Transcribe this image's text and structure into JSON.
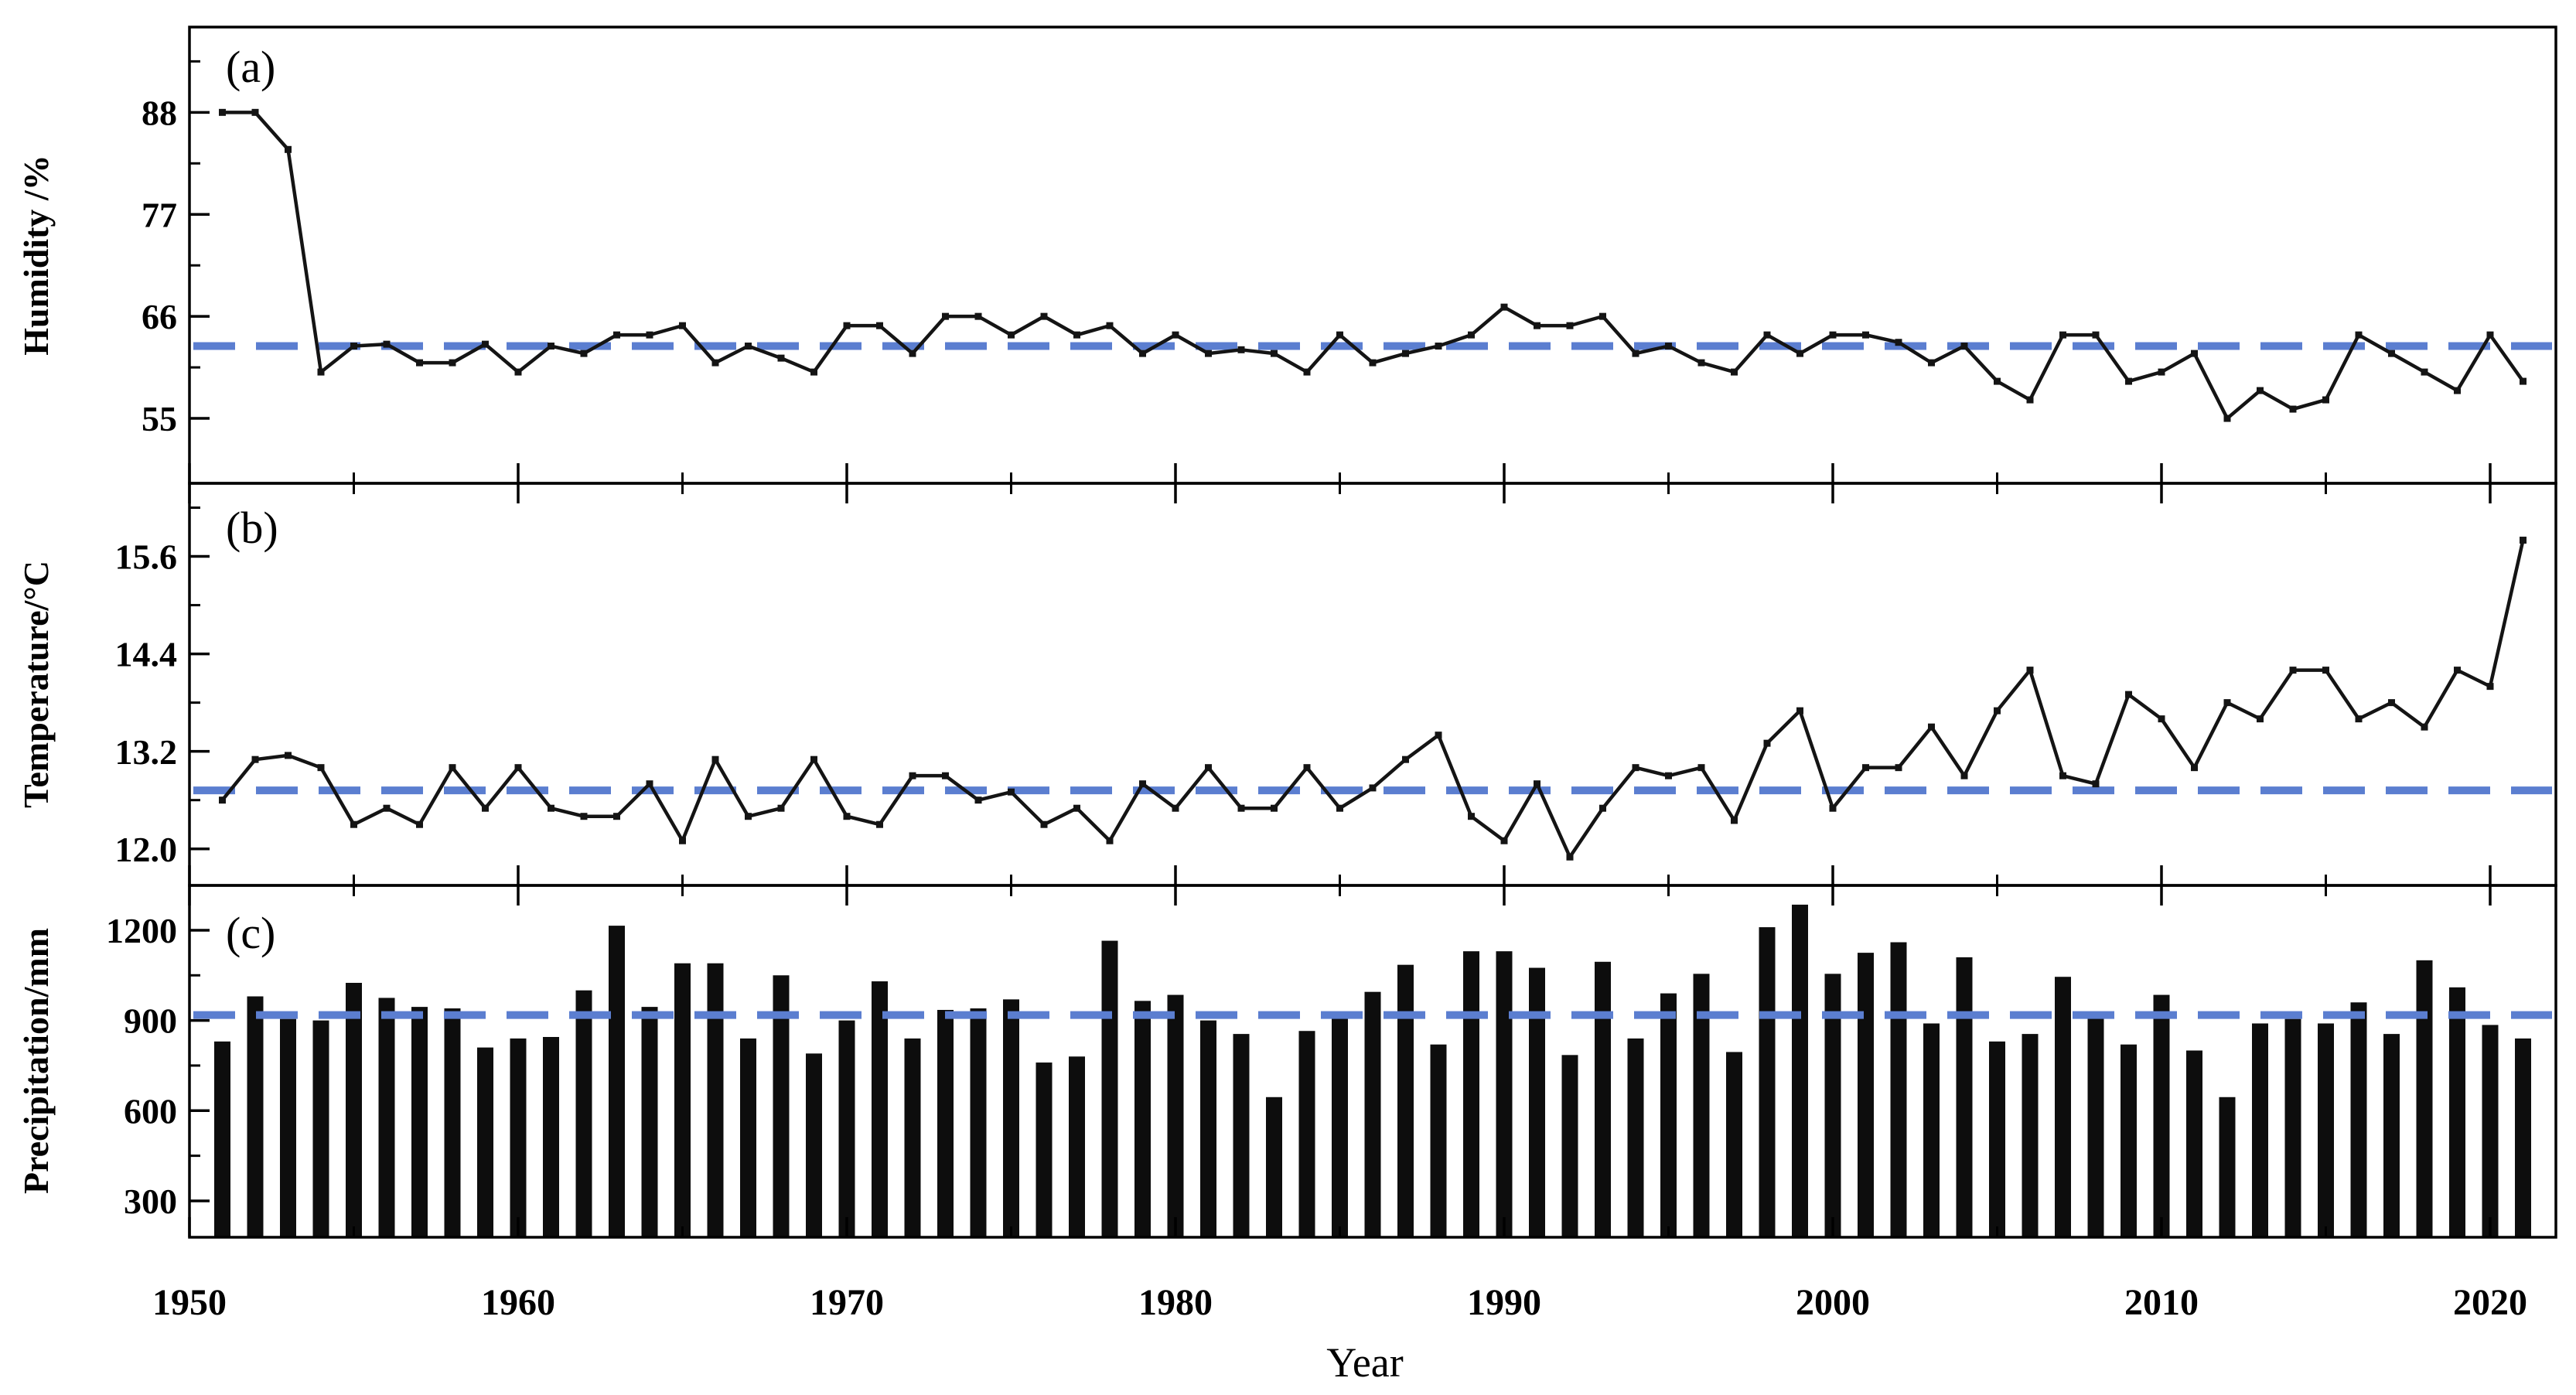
{
  "figure": {
    "xlabel": "Year",
    "x_tick_labels": [
      "1950",
      "1960",
      "1970",
      "1980",
      "1990",
      "2000",
      "2010",
      "2020"
    ],
    "x_major_ticks": [
      1950,
      1960,
      1970,
      1980,
      1990,
      2000,
      2010,
      2020
    ],
    "x_minor_ticks": [
      1955,
      1965,
      1975,
      1985,
      1995,
      2005,
      2015
    ],
    "xlim": [
      1950,
      2022
    ],
    "background": "#ffffff",
    "axis_color": "#000000"
  },
  "chart_data": [
    {
      "type": "line",
      "panel_label": "(a)",
      "ylabel": "Humidity /%",
      "legend_position": "none",
      "grid": false,
      "line_color": "#141414",
      "mean_line_color": "#5b7ed0",
      "mean": 62.8,
      "ylim": [
        48,
        97.2
      ],
      "y_ticks": [
        55,
        66,
        77,
        88
      ],
      "y_tick_labels": [
        "55",
        "66",
        "77",
        "88"
      ],
      "y_minor_ticks": [
        60.5,
        71.5,
        82.5,
        93.5
      ],
      "x_years": [
        1951,
        1952,
        1953,
        1954,
        1955,
        1956,
        1957,
        1958,
        1959,
        1960,
        1961,
        1962,
        1963,
        1964,
        1965,
        1966,
        1967,
        1968,
        1969,
        1970,
        1971,
        1972,
        1973,
        1974,
        1975,
        1976,
        1977,
        1978,
        1979,
        1980,
        1981,
        1982,
        1983,
        1984,
        1985,
        1986,
        1987,
        1988,
        1989,
        1990,
        1991,
        1992,
        1993,
        1994,
        1995,
        1996,
        1997,
        1998,
        1999,
        2000,
        2001,
        2002,
        2003,
        2004,
        2005,
        2006,
        2007,
        2008,
        2009,
        2010,
        2011,
        2012,
        2013,
        2014,
        2015,
        2016,
        2017,
        2018,
        2019,
        2020,
        2021
      ],
      "values": [
        88,
        88,
        84,
        60,
        62.8,
        63,
        61,
        61,
        63,
        60,
        62.8,
        62,
        64,
        64,
        65,
        61,
        62.8,
        61.5,
        60,
        65,
        65,
        62,
        66,
        66,
        64,
        66,
        64,
        65,
        62,
        64,
        62,
        62.4,
        62,
        60,
        64,
        61,
        62,
        62.8,
        64,
        67,
        65,
        65,
        66,
        62,
        62.8,
        61,
        60,
        64,
        62,
        64,
        64,
        63.2,
        61,
        62.8,
        59,
        57,
        64,
        64,
        59,
        60,
        62,
        55,
        58,
        56,
        57,
        64,
        62,
        60,
        58,
        64,
        59
      ]
    },
    {
      "type": "line",
      "panel_label": "(b)",
      "ylabel": "Temperature/°C",
      "legend_position": "none",
      "grid": false,
      "line_color": "#141414",
      "mean_line_color": "#5b7ed0",
      "mean": 12.72,
      "ylim": [
        11.55,
        16.5
      ],
      "y_ticks": [
        12.0,
        13.2,
        14.4,
        15.6
      ],
      "y_tick_labels": [
        "12.0",
        "13.2",
        "14.4",
        "15.6"
      ],
      "y_minor_ticks": [
        12.6,
        13.8,
        15.0,
        16.2
      ],
      "x_years": [
        1951,
        1952,
        1953,
        1954,
        1955,
        1956,
        1957,
        1958,
        1959,
        1960,
        1961,
        1962,
        1963,
        1964,
        1965,
        1966,
        1967,
        1968,
        1969,
        1970,
        1971,
        1972,
        1973,
        1974,
        1975,
        1976,
        1977,
        1978,
        1979,
        1980,
        1981,
        1982,
        1983,
        1984,
        1985,
        1986,
        1987,
        1988,
        1989,
        1990,
        1991,
        1992,
        1993,
        1994,
        1995,
        1996,
        1997,
        1998,
        1999,
        2000,
        2001,
        2002,
        2003,
        2004,
        2005,
        2006,
        2007,
        2008,
        2009,
        2010,
        2011,
        2012,
        2013,
        2014,
        2015,
        2016,
        2017,
        2018,
        2019,
        2020,
        2021
      ],
      "values": [
        12.6,
        13.1,
        13.15,
        13.0,
        12.3,
        12.5,
        12.3,
        13.0,
        12.5,
        13.0,
        12.5,
        12.4,
        12.4,
        12.8,
        12.1,
        13.1,
        12.4,
        12.5,
        13.1,
        12.4,
        12.3,
        12.9,
        12.9,
        12.6,
        12.7,
        12.3,
        12.5,
        12.1,
        12.8,
        12.5,
        13.0,
        12.5,
        12.5,
        13.0,
        12.5,
        12.75,
        13.1,
        13.4,
        12.4,
        12.1,
        12.8,
        11.9,
        12.5,
        13.0,
        12.9,
        13.0,
        12.35,
        13.3,
        13.7,
        12.5,
        13.0,
        13.0,
        13.5,
        12.9,
        13.7,
        14.2,
        12.9,
        12.8,
        13.9,
        13.6,
        13.0,
        13.8,
        13.6,
        14.2,
        14.2,
        13.6,
        13.8,
        13.5,
        14.2,
        14.0,
        15.8
      ]
    },
    {
      "type": "bar",
      "panel_label": "(c)",
      "ylabel": "Precipitation/mm",
      "legend_position": "none",
      "grid": false,
      "bar_color": "#0d0d0d",
      "mean_line_color": "#5b7ed0",
      "mean": 918,
      "ylim": [
        179,
        1349
      ],
      "y_ticks": [
        300,
        600,
        900,
        1200
      ],
      "y_tick_labels": [
        "300",
        "600",
        "900",
        "1200"
      ],
      "y_minor_ticks": [
        450,
        750,
        1050
      ],
      "x_years": [
        1951,
        1952,
        1953,
        1954,
        1955,
        1956,
        1957,
        1958,
        1959,
        1960,
        1961,
        1962,
        1963,
        1964,
        1965,
        1966,
        1967,
        1968,
        1969,
        1970,
        1971,
        1972,
        1973,
        1974,
        1975,
        1976,
        1977,
        1978,
        1979,
        1980,
        1981,
        1982,
        1983,
        1984,
        1985,
        1986,
        1987,
        1988,
        1989,
        1990,
        1991,
        1992,
        1993,
        1994,
        1995,
        1996,
        1997,
        1998,
        1999,
        2000,
        2001,
        2002,
        2003,
        2004,
        2005,
        2006,
        2007,
        2008,
        2009,
        2010,
        2011,
        2012,
        2013,
        2014,
        2015,
        2016,
        2017,
        2018,
        2019,
        2020,
        2021
      ],
      "values": [
        830,
        980,
        905,
        900,
        1025,
        975,
        945,
        940,
        810,
        840,
        845,
        1000,
        1215,
        945,
        1090,
        1090,
        840,
        1050,
        790,
        900,
        1030,
        840,
        935,
        940,
        970,
        760,
        780,
        1165,
        965,
        985,
        900,
        855,
        645,
        865,
        915,
        995,
        1085,
        820,
        1130,
        1130,
        1075,
        785,
        1095,
        840,
        990,
        1055,
        795,
        1210,
        1285,
        1055,
        1125,
        1160,
        890,
        1110,
        830,
        855,
        1045,
        910,
        820,
        985,
        800,
        645,
        890,
        905,
        890,
        960,
        855,
        1100,
        1010,
        885,
        840
      ]
    }
  ]
}
